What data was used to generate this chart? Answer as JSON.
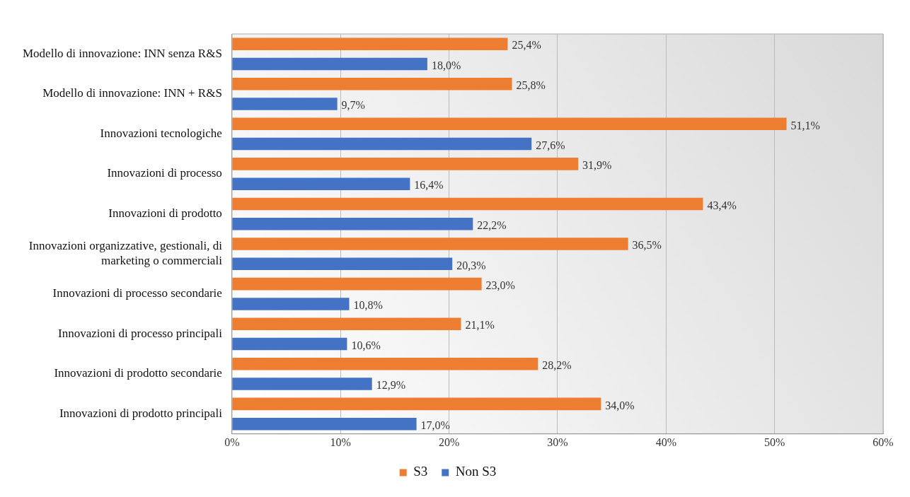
{
  "chart_data": {
    "type": "bar",
    "orientation": "horizontal",
    "categories": [
      "Modello di innovazione: INN senza R&S",
      "Modello di innovazione: INN + R&S",
      "Innovazioni tecnologiche",
      "Innovazioni di processo",
      "Innovazioni di prodotto",
      "Innovazioni organizzative, gestionali, di marketing o commerciali",
      "Innovazioni di processo secondarie",
      "Innovazioni di processo principali",
      "Innovazioni di prodotto secondarie",
      "Innovazioni di prodotto principali"
    ],
    "series": [
      {
        "name": "S3",
        "color": "#ed7d31",
        "values": [
          25.4,
          25.8,
          51.1,
          31.9,
          43.4,
          36.5,
          23.0,
          21.1,
          28.2,
          34.0
        ],
        "value_labels": [
          "25,4%",
          "25,8%",
          "51,1%",
          "31,9%",
          "43,4%",
          "36,5%",
          "23,0%",
          "21,1%",
          "28,2%",
          "34,0%"
        ]
      },
      {
        "name": "Non S3",
        "color": "#4472c4",
        "values": [
          18.0,
          9.7,
          27.6,
          16.4,
          22.2,
          20.3,
          10.8,
          10.6,
          12.9,
          17.0
        ],
        "value_labels": [
          "18,0%",
          "9,7%",
          "27,6%",
          "16,4%",
          "22,2%",
          "20,3%",
          "10,8%",
          "10,6%",
          "12,9%",
          "17,0%"
        ]
      }
    ],
    "xlim": [
      0,
      60
    ],
    "xticks": [
      {
        "value": 0,
        "label": "0%"
      },
      {
        "value": 10,
        "label": "10%"
      },
      {
        "value": 20,
        "label": "20%"
      },
      {
        "value": 30,
        "label": "30%"
      },
      {
        "value": 40,
        "label": "40%"
      },
      {
        "value": 50,
        "label": "50%"
      },
      {
        "value": 60,
        "label": "60%"
      }
    ],
    "grid": "x",
    "legend": "bottom"
  }
}
